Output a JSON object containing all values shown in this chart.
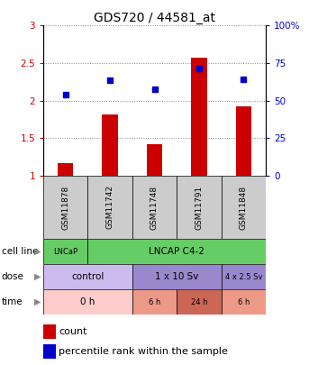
{
  "title": "GDS720 / 44581_at",
  "samples": [
    "GSM11878",
    "GSM11742",
    "GSM11748",
    "GSM11791",
    "GSM11848"
  ],
  "count_values": [
    1.17,
    1.82,
    1.42,
    2.57,
    1.92
  ],
  "percentile_values": [
    2.08,
    2.27,
    2.15,
    2.43,
    2.28
  ],
  "ylim_left": [
    1.0,
    3.0
  ],
  "ylim_right": [
    0,
    100
  ],
  "yticks_left": [
    1.0,
    1.5,
    2.0,
    2.5,
    3.0
  ],
  "yticks_right": [
    0,
    25,
    50,
    75,
    100
  ],
  "ytick_labels_left": [
    "1",
    "1.5",
    "2",
    "2.5",
    "3"
  ],
  "ytick_labels_right": [
    "0",
    "25",
    "50",
    "75",
    "100%"
  ],
  "bar_color": "#cc0000",
  "dot_color": "#0000cc",
  "bar_width": 0.35,
  "cell_line_entries": [
    {
      "text": "LNCaP",
      "span": [
        0,
        1
      ],
      "color": "#66cc66"
    },
    {
      "text": "LNCAP C4-2",
      "span": [
        1,
        5
      ],
      "color": "#66cc66"
    }
  ],
  "dose_entries": [
    {
      "text": "control",
      "span": [
        0,
        2
      ],
      "color": "#ccbbee"
    },
    {
      "text": "1 x 10 Sv",
      "span": [
        2,
        4
      ],
      "color": "#9988cc"
    },
    {
      "text": "4 x 2.5 Sv",
      "span": [
        4,
        5
      ],
      "color": "#9988cc"
    }
  ],
  "time_entries": [
    {
      "text": "0 h",
      "span": [
        0,
        2
      ],
      "color": "#ffcccc"
    },
    {
      "text": "6 h",
      "span": [
        2,
        3
      ],
      "color": "#ee9988"
    },
    {
      "text": "24 h",
      "span": [
        3,
        4
      ],
      "color": "#cc6655"
    },
    {
      "text": "6 h",
      "span": [
        4,
        5
      ],
      "color": "#ee9988"
    }
  ],
  "row_labels": [
    "cell line",
    "dose",
    "time"
  ],
  "legend_count_color": "#cc0000",
  "legend_dot_color": "#0000cc",
  "sample_bg": "#cccccc",
  "fig_bg": "#ffffff",
  "grid_color": "#888888"
}
